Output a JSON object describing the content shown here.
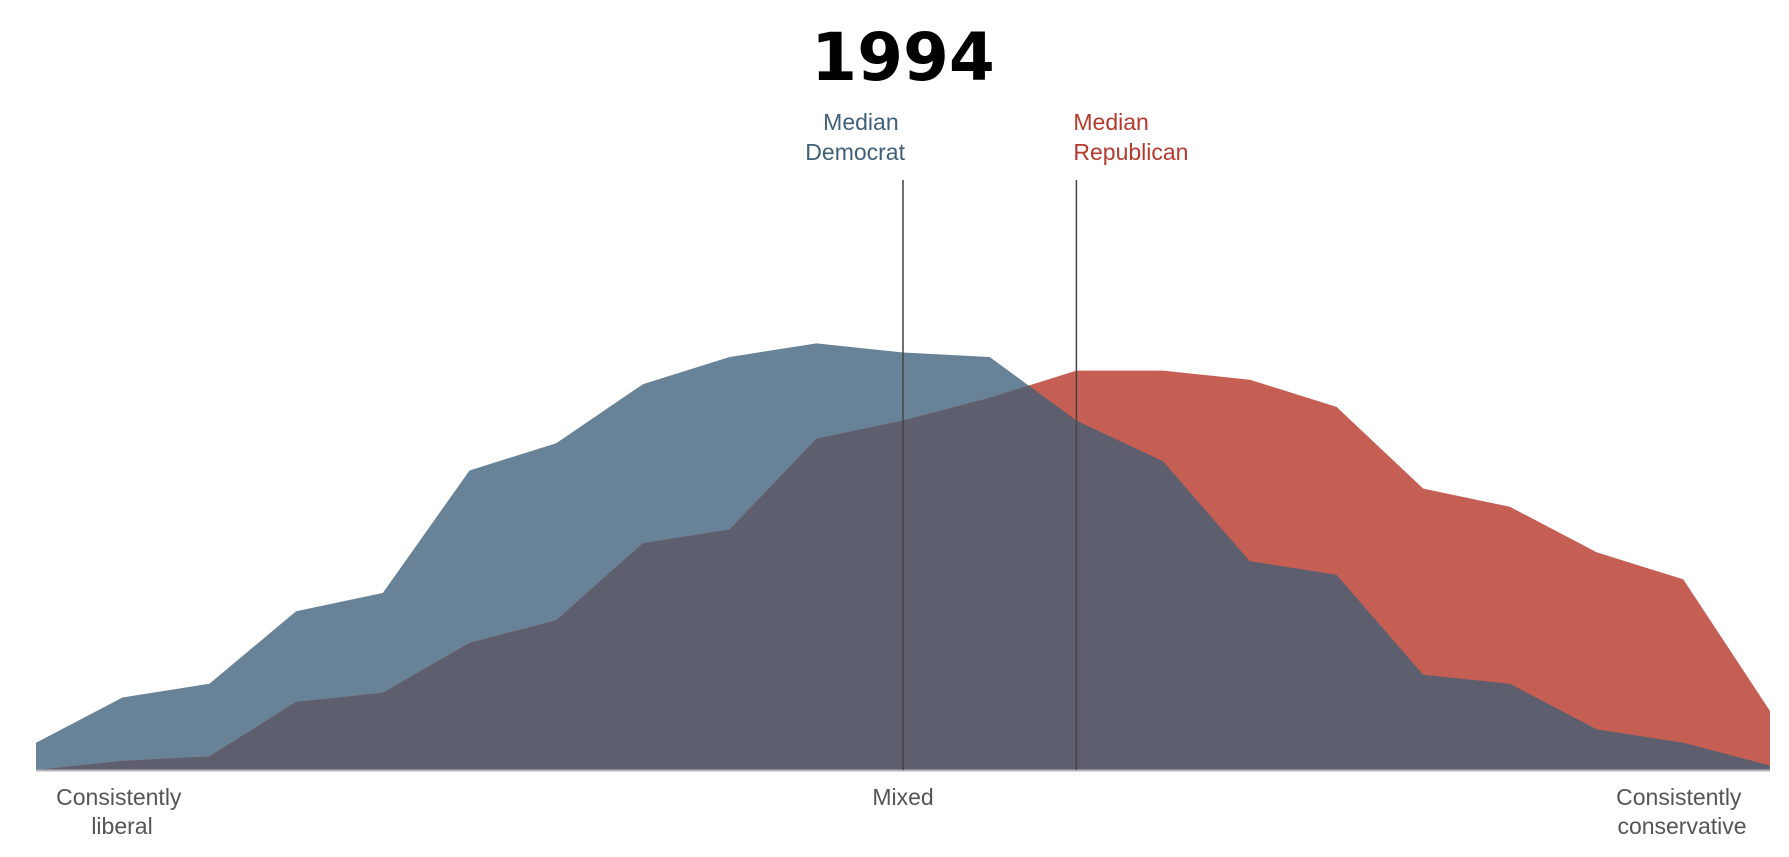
{
  "chart_data": {
    "type": "area",
    "title": "1994",
    "xlabel": "",
    "ylabel": "",
    "x": [
      -10,
      -9,
      -8,
      -7,
      -6,
      -5,
      -4,
      -3,
      -2,
      -1,
      0,
      1,
      2,
      3,
      4,
      5,
      6,
      7,
      8,
      9,
      10
    ],
    "xlim": [
      -10,
      10
    ],
    "ylim": [
      0,
      13
    ],
    "grid": false,
    "series": [
      {
        "name": "Democrats",
        "color": "#688397",
        "values": [
          0.6,
          1.6,
          1.9,
          3.5,
          3.9,
          6.6,
          7.2,
          8.5,
          9.1,
          9.4,
          9.2,
          9.1,
          7.7,
          6.8,
          4.6,
          4.3,
          2.1,
          1.9,
          0.9,
          0.6,
          0.1
        ]
      },
      {
        "name": "Republicans",
        "color": "#c65f53",
        "values": [
          0.0,
          0.2,
          0.3,
          1.5,
          1.7,
          2.8,
          3.3,
          5.0,
          5.3,
          7.3,
          7.7,
          8.2,
          8.8,
          8.8,
          8.6,
          8.0,
          6.2,
          5.8,
          4.8,
          4.2,
          1.3
        ]
      }
    ],
    "overlap_color": "#5e5f6e",
    "medians": [
      {
        "label_line1": "Median",
        "label_line2": "Democrat",
        "x": 0,
        "color": "#3f6079"
      },
      {
        "label_line1": "Median",
        "label_line2": "Republican",
        "x": 2,
        "color": "#b53a2e"
      }
    ],
    "x_tick_labels": [
      {
        "x": -10,
        "line1": "Consistently",
        "line2": "liberal"
      },
      {
        "x": 0,
        "line1": "Mixed",
        "line2": ""
      },
      {
        "x": 10,
        "line1": "Consistently",
        "line2": "conservative"
      }
    ],
    "axis_color": "#b5b5b5",
    "median_line_color": "#444444"
  }
}
